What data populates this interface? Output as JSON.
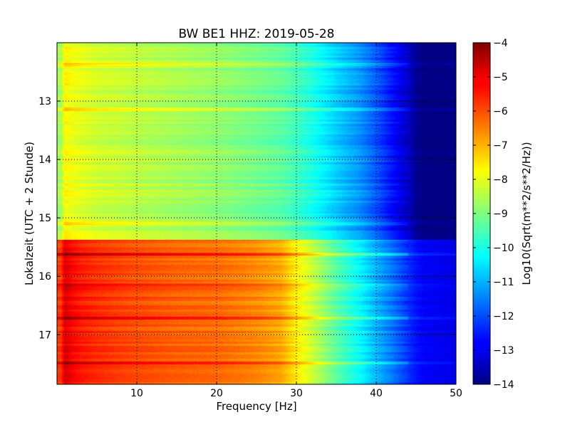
{
  "chart_data": {
    "type": "heatmap",
    "title": "BW BE1 HHZ: 2019-05-28",
    "xlabel": "Frequency [Hz]",
    "ylabel": "Lokalzeit (UTC + 2 Stunde)",
    "xlim": [
      0,
      50
    ],
    "ylim": [
      12.0,
      17.85
    ],
    "y_inverted": true,
    "x_ticks": [
      10,
      20,
      30,
      40,
      50
    ],
    "x_tick_labels": [
      "10",
      "20",
      "30",
      "40",
      "50"
    ],
    "y_ticks": [
      13,
      14,
      15,
      16,
      17
    ],
    "y_tick_labels": [
      "13",
      "14",
      "15",
      "16",
      "17"
    ],
    "grid": true,
    "colormap": "jet",
    "colorbar": {
      "label": "Log10(Sqrt(m**2/s**2/Hz))",
      "range": [
        -14,
        -4
      ],
      "ticks": [
        -4,
        -5,
        -6,
        -7,
        -8,
        -9,
        -10,
        -11,
        -12,
        -13,
        -14
      ],
      "tick_labels": [
        "−4",
        "−5",
        "−6",
        "−7",
        "−8",
        "−9",
        "−10",
        "−11",
        "−12",
        "−13",
        "−14"
      ]
    },
    "profile_frequency_hz": [
      0.5,
      1,
      2,
      3,
      5,
      8,
      10,
      15,
      20,
      25,
      28,
      30,
      32,
      35,
      38,
      40,
      42,
      44,
      45,
      46,
      50
    ],
    "quiet_segment": {
      "time_range": [
        12.0,
        15.37
      ],
      "log10_amplitude": [
        -8.6,
        -7.7,
        -7.9,
        -8.0,
        -8.2,
        -8.3,
        -8.4,
        -8.6,
        -8.8,
        -9.1,
        -9.3,
        -9.6,
        -10.0,
        -10.7,
        -11.3,
        -11.9,
        -12.6,
        -13.3,
        -13.8,
        -14.0,
        -14.0
      ]
    },
    "active_segment": {
      "time_range": [
        15.37,
        17.85
      ],
      "log10_amplitude": [
        -5.8,
        -4.9,
        -5.3,
        -5.5,
        -5.7,
        -5.9,
        -6.0,
        -6.2,
        -6.3,
        -6.6,
        -6.9,
        -7.6,
        -8.3,
        -9.4,
        -10.3,
        -11.0,
        -11.6,
        -12.3,
        -12.6,
        -12.8,
        -13.0
      ]
    },
    "line_features": [
      {
        "time": 12.38,
        "delta": 0.7
      },
      {
        "time": 13.14,
        "delta": 0.8
      },
      {
        "time": 15.1,
        "delta": 0.5
      },
      {
        "time": 15.62,
        "delta": 1.0
      },
      {
        "time": 16.14,
        "delta": 0.5
      },
      {
        "time": 16.72,
        "delta": 0.8
      },
      {
        "time": 17.48,
        "delta": 0.8
      }
    ]
  }
}
